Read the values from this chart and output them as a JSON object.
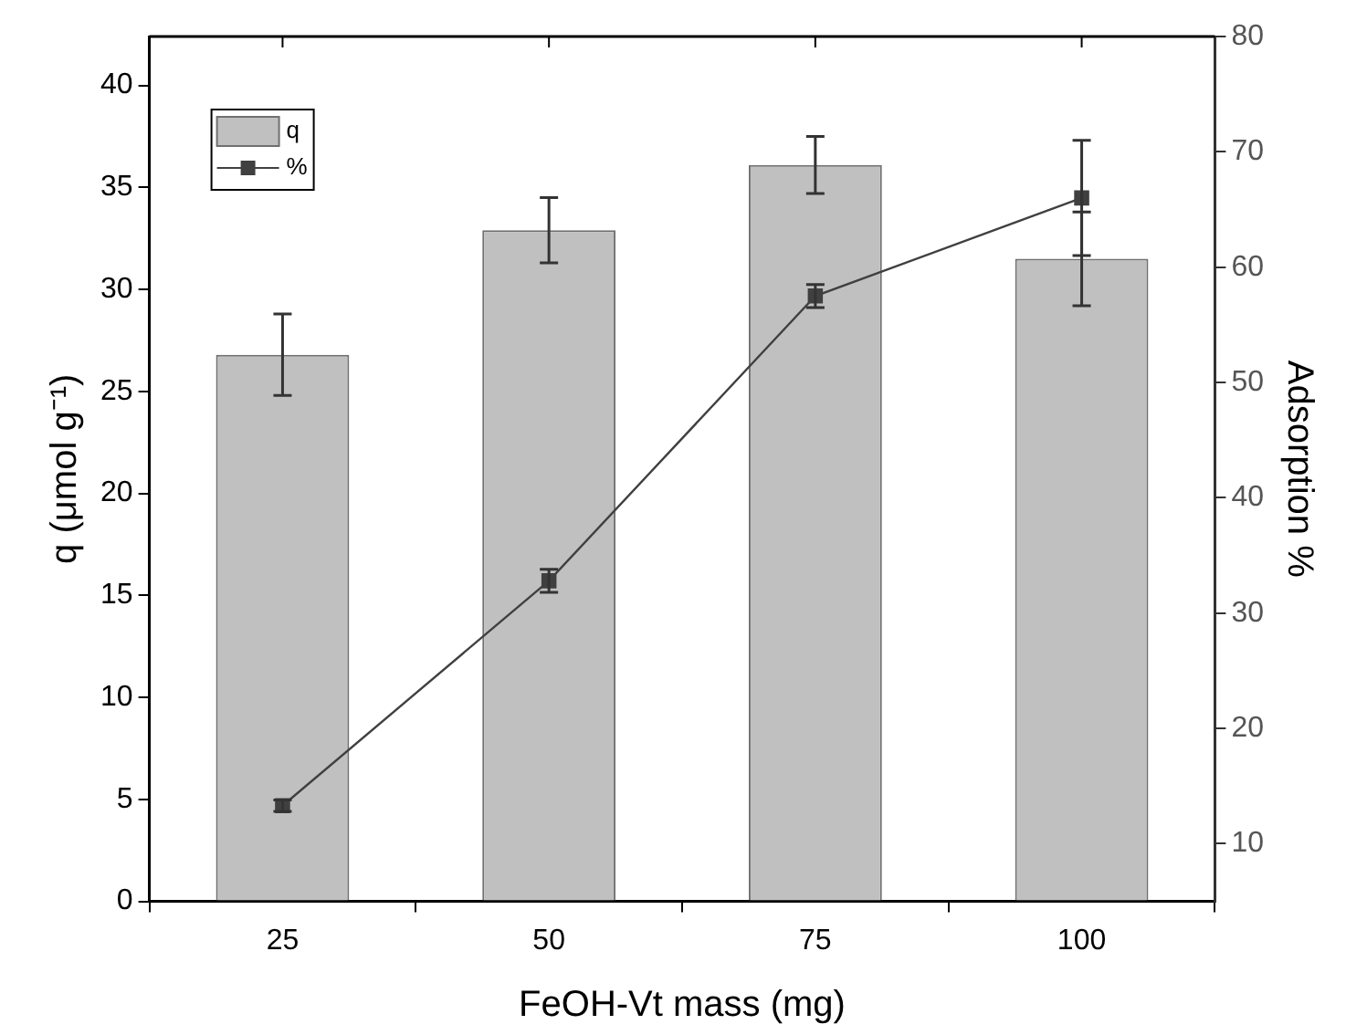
{
  "chart_data": {
    "type": "bar",
    "xlabel": "FeOH-Vt mass (mg)",
    "ylabel": "q (μmol g⁻¹)",
    "y2label": "Adsorption %",
    "categories": [
      "25",
      "50",
      "75",
      "100"
    ],
    "ylim": [
      0,
      42.4
    ],
    "yticks": [
      0,
      5,
      10,
      15,
      20,
      25,
      30,
      35,
      40
    ],
    "y2lim": [
      5,
      80
    ],
    "y2ticks": [
      10,
      20,
      30,
      40,
      50,
      60,
      70,
      80
    ],
    "legend": "top left",
    "marker": "square",
    "series": [
      {
        "name": "q",
        "color": "#c0c0c0",
        "values": [
          26.8,
          32.9,
          36.1,
          31.5
        ],
        "errors": [
          2,
          1.6,
          1.4,
          2.3
        ]
      },
      {
        "name": "%",
        "type": "line",
        "axis": "y2",
        "color": "#404040",
        "values": [
          13.3,
          32.8,
          57.5,
          66.0
        ],
        "errors": [
          0.5,
          1,
          1,
          5
        ]
      }
    ]
  }
}
